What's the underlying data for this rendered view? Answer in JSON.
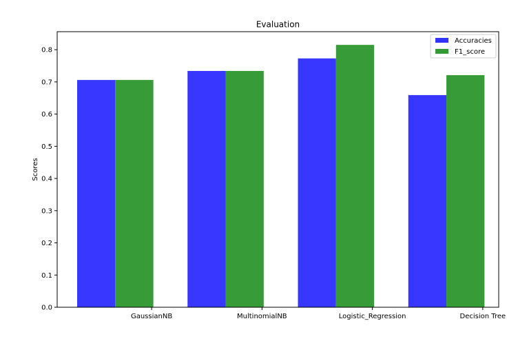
{
  "chart_data": {
    "type": "bar",
    "title": "Evaluation",
    "xlabel": "",
    "ylabel": "Scores",
    "categories": [
      "GaussianNB",
      "MultinomialNB",
      "Logistic_Regression",
      "Decision Tree"
    ],
    "series": [
      {
        "name": "Accuracies",
        "color": "#3333ff",
        "values": [
          0.706,
          0.734,
          0.773,
          0.659
        ]
      },
      {
        "name": "F1_score",
        "color": "#339933",
        "values": [
          0.706,
          0.734,
          0.815,
          0.721
        ]
      }
    ],
    "ylim": [
      0.0,
      0.856
    ],
    "yticks": [
      "0.0",
      "0.1",
      "0.2",
      "0.3",
      "0.4",
      "0.5",
      "0.6",
      "0.7",
      "0.8"
    ],
    "grid": false,
    "legend": "top-right"
  }
}
